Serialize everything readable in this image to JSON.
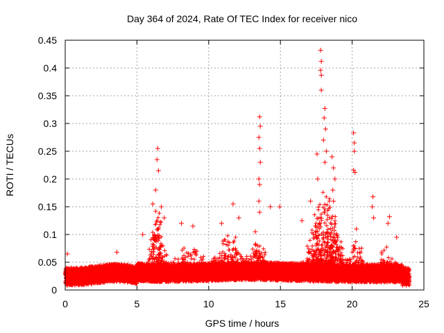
{
  "chart_data": {
    "type": "scatter",
    "title": "Day 364 of 2024, Rate Of TEC Index for receiver nico",
    "xlabel": "GPS time / hours",
    "ylabel": "ROTI / TECUs",
    "xlim": [
      0,
      25
    ],
    "ylim": [
      0,
      0.45
    ],
    "x_ticks": [
      0,
      5,
      10,
      15,
      20,
      25
    ],
    "x_tick_labels": [
      "0",
      "5",
      "10",
      "15",
      "20",
      "25"
    ],
    "y_ticks": [
      0,
      0.05,
      0.1,
      0.15,
      0.2,
      0.25,
      0.3,
      0.35,
      0.4,
      0.45
    ],
    "y_tick_labels": [
      "0",
      "0.05",
      "0.1",
      "0.15",
      "0.2",
      "0.25",
      "0.3",
      "0.35",
      "0.4",
      "0.45"
    ],
    "grid": true,
    "marker": "+",
    "marker_color": "#ff0000",
    "series": [
      {
        "name": "ROTI",
        "note": "dense scatter of ~10000 points with baseline 0.01-0.05 TECU; representative peak points listed",
        "peaks": [
          {
            "x": 6.45,
            "y": 0.255
          },
          {
            "x": 6.4,
            "y": 0.235
          },
          {
            "x": 6.5,
            "y": 0.215
          },
          {
            "x": 6.3,
            "y": 0.18
          },
          {
            "x": 6.1,
            "y": 0.155
          },
          {
            "x": 6.7,
            "y": 0.15
          },
          {
            "x": 6.9,
            "y": 0.13
          },
          {
            "x": 5.4,
            "y": 0.1
          },
          {
            "x": 8.1,
            "y": 0.12
          },
          {
            "x": 8.9,
            "y": 0.115
          },
          {
            "x": 10.9,
            "y": 0.12
          },
          {
            "x": 11.7,
            "y": 0.155
          },
          {
            "x": 12.1,
            "y": 0.13
          },
          {
            "x": 13.25,
            "y": 0.105
          },
          {
            "x": 13.55,
            "y": 0.312
          },
          {
            "x": 13.6,
            "y": 0.295
          },
          {
            "x": 13.5,
            "y": 0.275
          },
          {
            "x": 13.55,
            "y": 0.255
          },
          {
            "x": 13.6,
            "y": 0.23
          },
          {
            "x": 13.5,
            "y": 0.2
          },
          {
            "x": 13.55,
            "y": 0.19
          },
          {
            "x": 13.5,
            "y": 0.16
          },
          {
            "x": 13.55,
            "y": 0.14
          },
          {
            "x": 14.3,
            "y": 0.15
          },
          {
            "x": 14.95,
            "y": 0.15
          },
          {
            "x": 16.5,
            "y": 0.125
          },
          {
            "x": 17.1,
            "y": 0.16
          },
          {
            "x": 17.55,
            "y": 0.245
          },
          {
            "x": 17.6,
            "y": 0.2
          },
          {
            "x": 17.8,
            "y": 0.432
          },
          {
            "x": 17.85,
            "y": 0.412
          },
          {
            "x": 17.8,
            "y": 0.396
          },
          {
            "x": 17.85,
            "y": 0.387
          },
          {
            "x": 17.85,
            "y": 0.36
          },
          {
            "x": 18.1,
            "y": 0.327
          },
          {
            "x": 18.05,
            "y": 0.31
          },
          {
            "x": 18.15,
            "y": 0.29
          },
          {
            "x": 18.0,
            "y": 0.27
          },
          {
            "x": 18.2,
            "y": 0.25
          },
          {
            "x": 18.1,
            "y": 0.23
          },
          {
            "x": 18.6,
            "y": 0.24
          },
          {
            "x": 18.7,
            "y": 0.22
          },
          {
            "x": 18.8,
            "y": 0.2
          },
          {
            "x": 18.65,
            "y": 0.18
          },
          {
            "x": 18.7,
            "y": 0.16
          },
          {
            "x": 20.1,
            "y": 0.283
          },
          {
            "x": 20.15,
            "y": 0.265
          },
          {
            "x": 20.15,
            "y": 0.25
          },
          {
            "x": 20.1,
            "y": 0.216
          },
          {
            "x": 20.2,
            "y": 0.212
          },
          {
            "x": 20.3,
            "y": 0.11
          },
          {
            "x": 21.45,
            "y": 0.168
          },
          {
            "x": 21.4,
            "y": 0.15
          },
          {
            "x": 21.5,
            "y": 0.13
          },
          {
            "x": 22.6,
            "y": 0.132
          },
          {
            "x": 22.5,
            "y": 0.12
          },
          {
            "x": 23.1,
            "y": 0.095
          },
          {
            "x": 3.6,
            "y": 0.068
          },
          {
            "x": 0.15,
            "y": 0.065
          }
        ]
      }
    ]
  }
}
